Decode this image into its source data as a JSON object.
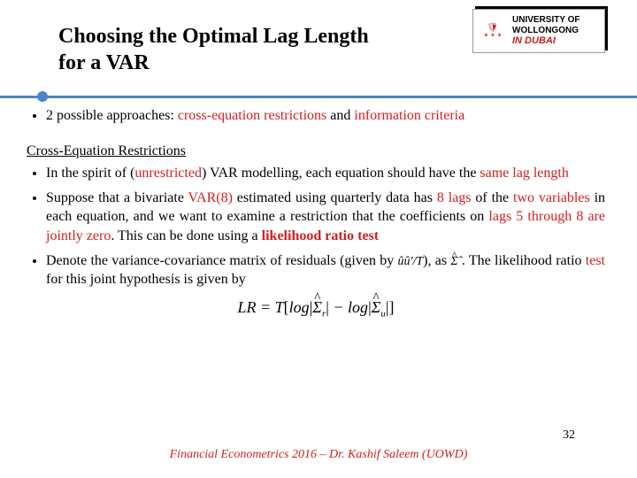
{
  "logo": {
    "line1": "UNIVERSITY OF",
    "line2": "WOLLONGONG",
    "line3": "IN DUBAI",
    "crest_glyphs": "✶ ✶ ✶"
  },
  "title": {
    "line1": "Choosing the Optimal Lag Length",
    "line2": "for a VAR"
  },
  "bullets": {
    "b1_pre": "2 possible approaches: ",
    "b1_red1": "cross-equation restrictions",
    "b1_mid": " and ",
    "b1_red2": "information criteria",
    "section": "Cross-Equation Restrictions",
    "b2_pre": "In the spirit of (",
    "b2_red1": "unrestricted",
    "b2_mid": ") VAR modelling, each equation should have the ",
    "b2_red2": "same lag length",
    "b3_a": "Suppose that a bivariate ",
    "b3_r1": "VAR(8)",
    "b3_b": " estimated using quarterly data has ",
    "b3_r2": "8 lags",
    "b3_c": " of the ",
    "b3_r3": "two variables",
    "b3_d": " in each equation, and we want to examine a restriction that the coefficients on ",
    "b3_r4": "lags 5 through 8 are jointly zero",
    "b3_e": ". This can be done using a ",
    "b3_r5": "likelihood ratio test",
    "b4_a": "Denote the variance-covariance matrix of residuals (given by ",
    "b4_math": "ûû'/T",
    "b4_b": "), as ",
    "b4_sigma": "Σ̂",
    "b4_c": " . The likelihood ratio ",
    "b4_r1": "test",
    "b4_d": " for this joint hypothesis is given by"
  },
  "equation": {
    "text_pre": "LR = T",
    "logl": "log",
    "sigma_r": "Σ",
    "sub_r": "r",
    "minus": " − ",
    "sigma_u": "Σ",
    "sub_u": "u"
  },
  "footer": "Financial Econometrics 2016 –   Dr. Kashif Saleem (UOWD)",
  "pagenum": "32",
  "colors": {
    "accent_blue": "#4a86c7",
    "accent_red": "#d02020"
  }
}
